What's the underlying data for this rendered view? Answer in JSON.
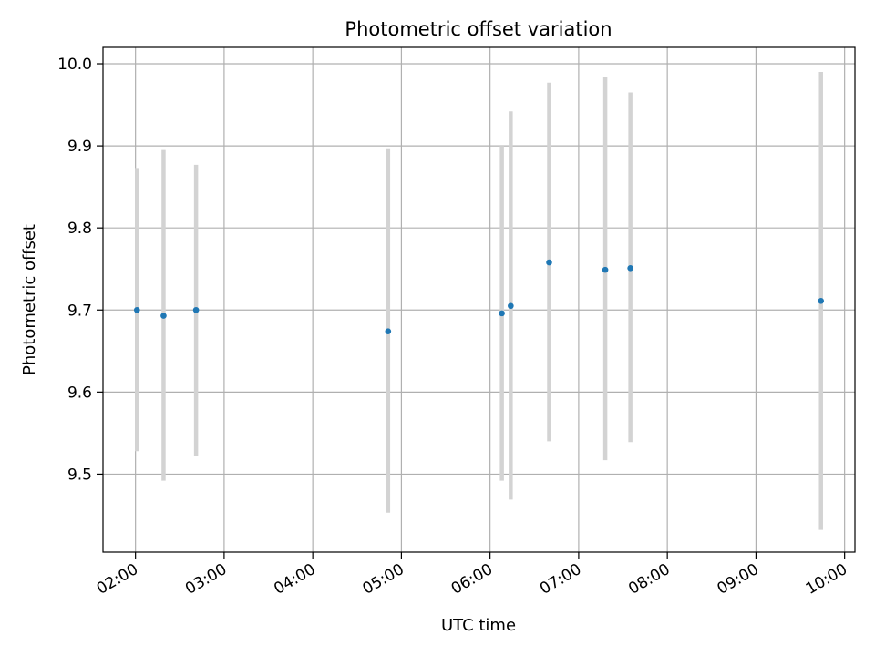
{
  "chart_data": {
    "type": "scatter",
    "title": "Photometric offset variation",
    "xlabel": "UTC time",
    "ylabel": "Photometric offset",
    "xlim": [
      "01:38",
      "10:07"
    ],
    "ylim": [
      9.405,
      10.02
    ],
    "grid": true,
    "x_ticks": [
      "02:00",
      "03:00",
      "04:00",
      "05:00",
      "06:00",
      "07:00",
      "08:00",
      "09:00",
      "10:00"
    ],
    "y_ticks": [
      "9.5",
      "9.6",
      "9.7",
      "9.8",
      "9.9",
      "10.0"
    ],
    "points": [
      {
        "x": "02:01",
        "y": 9.7,
        "err_low": 9.528,
        "err_high": 9.873
      },
      {
        "x": "02:19",
        "y": 9.693,
        "err_low": 9.492,
        "err_high": 9.895
      },
      {
        "x": "02:41",
        "y": 9.7,
        "err_low": 9.522,
        "err_high": 9.877
      },
      {
        "x": "04:51",
        "y": 9.674,
        "err_low": 9.453,
        "err_high": 9.897
      },
      {
        "x": "06:08",
        "y": 9.696,
        "err_low": 9.492,
        "err_high": 9.9
      },
      {
        "x": "06:14",
        "y": 9.705,
        "err_low": 9.469,
        "err_high": 9.942
      },
      {
        "x": "06:40",
        "y": 9.758,
        "err_low": 9.54,
        "err_high": 9.977
      },
      {
        "x": "07:18",
        "y": 9.749,
        "err_low": 9.517,
        "err_high": 9.984
      },
      {
        "x": "07:35",
        "y": 9.751,
        "err_low": 9.539,
        "err_high": 9.965
      },
      {
        "x": "09:44",
        "y": 9.711,
        "err_low": 9.432,
        "err_high": 9.99
      }
    ],
    "colors": {
      "point": "#1f77b4",
      "errorbar": "#d3d3d3",
      "grid": "#b0b0b0",
      "axes": "#000000"
    }
  }
}
